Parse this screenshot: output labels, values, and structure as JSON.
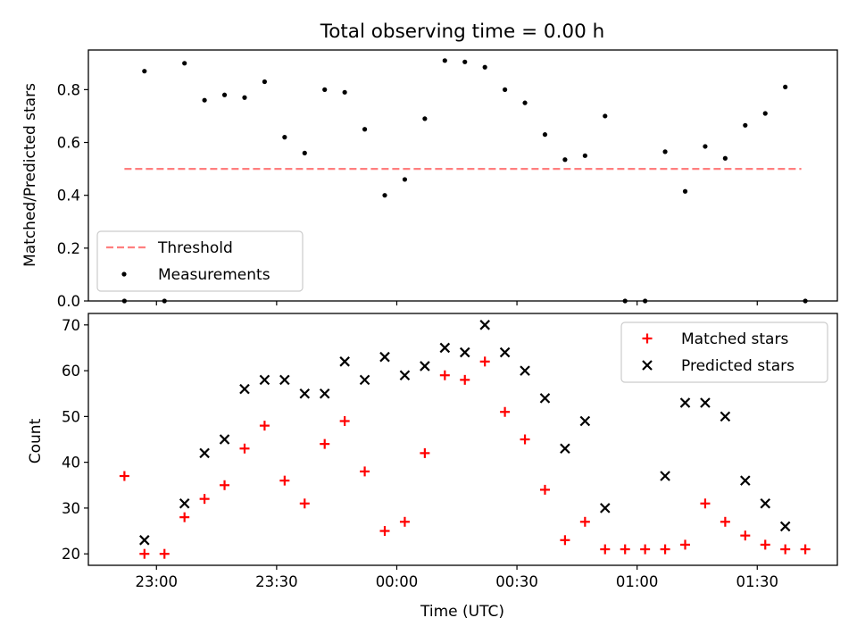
{
  "title": "Total observing time = 0.00 h",
  "xlabel": "Time (UTC)",
  "colors": {
    "threshold": "#ff7f7f",
    "measurements": "#000000",
    "matched": "#ff0000",
    "predicted": "#000000"
  },
  "chart_data": [
    {
      "type": "scatter",
      "panel": "top",
      "ylabel": "Matched/Predicted stars",
      "ylim": [
        0.0,
        0.95
      ],
      "yticks": [
        0.0,
        0.2,
        0.4,
        0.6,
        0.8
      ],
      "ytick_labels": [
        "0.0",
        "0.2",
        "0.4",
        "0.6",
        "0.8"
      ],
      "xlim": [
        "22:43",
        "01:50"
      ],
      "xticks": [
        "23:00",
        "23:30",
        "00:00",
        "00:30",
        "01:00",
        "01:30"
      ],
      "legend_position": "lower-left",
      "threshold": {
        "name": "Threshold",
        "y": 0.5,
        "x_range": [
          "22:52",
          "01:41"
        ],
        "style": "dashed"
      },
      "series": [
        {
          "name": "Measurements",
          "marker": "dot",
          "x": [
            "22:52",
            "22:57",
            "23:02",
            "23:07",
            "23:12",
            "23:17",
            "23:22",
            "23:27",
            "23:32",
            "23:37",
            "23:42",
            "23:47",
            "23:52",
            "23:57",
            "00:02",
            "00:07",
            "00:12",
            "00:17",
            "00:22",
            "00:27",
            "00:32",
            "00:37",
            "00:42",
            "00:47",
            "00:52",
            "00:57",
            "01:02",
            "01:07",
            "01:12",
            "01:17",
            "01:22",
            "01:27",
            "01:32",
            "01:37",
            "01:42"
          ],
          "y": [
            0.0,
            0.87,
            0.0,
            0.9,
            0.76,
            0.78,
            0.77,
            0.83,
            0.62,
            0.56,
            0.8,
            0.79,
            0.65,
            0.4,
            0.46,
            0.69,
            0.91,
            0.905,
            0.885,
            0.8,
            0.75,
            0.63,
            0.535,
            0.55,
            0.7,
            0.0,
            0.0,
            0.565,
            0.415,
            0.585,
            0.54,
            0.665,
            0.71,
            0.81,
            0.0
          ]
        }
      ]
    },
    {
      "type": "scatter",
      "panel": "bottom",
      "ylabel": "Count",
      "ylim": [
        17.5,
        72.5
      ],
      "yticks": [
        20,
        30,
        40,
        50,
        60,
        70
      ],
      "ytick_labels": [
        "20",
        "30",
        "40",
        "50",
        "60",
        "70"
      ],
      "xlim": [
        "22:43",
        "01:50"
      ],
      "xticks": [
        "23:00",
        "23:30",
        "00:00",
        "00:30",
        "01:00",
        "01:30"
      ],
      "xtick_labels": [
        "23:00",
        "23:30",
        "00:00",
        "00:30",
        "01:00",
        "01:30"
      ],
      "legend_position": "upper-right",
      "series": [
        {
          "name": "Matched stars",
          "marker": "plus",
          "x": [
            "22:52",
            "22:57",
            "23:02",
            "23:07",
            "23:12",
            "23:17",
            "23:22",
            "23:27",
            "23:32",
            "23:37",
            "23:42",
            "23:47",
            "23:52",
            "23:57",
            "00:02",
            "00:07",
            "00:12",
            "00:17",
            "00:22",
            "00:27",
            "00:32",
            "00:37",
            "00:42",
            "00:47",
            "00:52",
            "00:57",
            "01:02",
            "01:07",
            "01:12",
            "01:17",
            "01:22",
            "01:27",
            "01:32",
            "01:37",
            "01:42"
          ],
          "y": [
            37,
            20,
            20,
            28,
            32,
            35,
            43,
            48,
            36,
            31,
            44,
            49,
            38,
            25,
            27,
            42,
            59,
            58,
            62,
            51,
            45,
            34,
            23,
            27,
            21,
            21,
            21,
            21,
            22,
            31,
            27,
            24,
            22,
            21,
            21
          ]
        },
        {
          "name": "Predicted stars",
          "marker": "x",
          "x": [
            "22:57",
            "23:07",
            "23:12",
            "23:17",
            "23:22",
            "23:27",
            "23:32",
            "23:37",
            "23:42",
            "23:47",
            "23:52",
            "23:57",
            "00:02",
            "00:07",
            "00:12",
            "00:17",
            "00:22",
            "00:27",
            "00:32",
            "00:37",
            "00:42",
            "00:47",
            "00:52",
            "01:07",
            "01:12",
            "01:17",
            "01:22",
            "01:27",
            "01:32",
            "01:37"
          ],
          "y": [
            23,
            31,
            42,
            45,
            56,
            58,
            58,
            55,
            55,
            62,
            58,
            63,
            59,
            61,
            65,
            64,
            70,
            64,
            60,
            54,
            43,
            49,
            30,
            37,
            53,
            53,
            50,
            36,
            31,
            26
          ]
        }
      ]
    }
  ]
}
